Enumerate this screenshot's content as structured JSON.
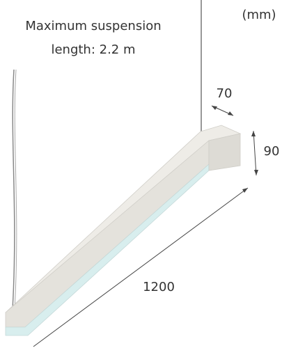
{
  "note_lines": [
    "Maximum suspension",
    "length: 2.2 m"
  ],
  "unit": "(mm)",
  "dimensions": {
    "depth": "70",
    "height": "90",
    "length": "1200"
  }
}
